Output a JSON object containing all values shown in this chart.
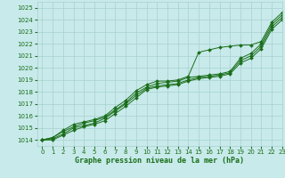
{
  "xlabel": "Graphe pression niveau de la mer (hPa)",
  "xlim": [
    -0.5,
    23
  ],
  "ylim": [
    1013.5,
    1025.5
  ],
  "yticks": [
    1014,
    1015,
    1016,
    1017,
    1018,
    1019,
    1020,
    1021,
    1022,
    1023,
    1024,
    1025
  ],
  "xticks": [
    0,
    1,
    2,
    3,
    4,
    5,
    6,
    7,
    8,
    9,
    10,
    11,
    12,
    13,
    14,
    15,
    16,
    17,
    18,
    19,
    20,
    21,
    22,
    23
  ],
  "bg_color": "#c8eaea",
  "grid_color": "#a8d0d0",
  "line_color": "#1a6e1a",
  "line1_y": [
    1014.0,
    1014.2,
    1014.8,
    1015.3,
    1015.5,
    1015.7,
    1016.0,
    1016.7,
    1017.3,
    1018.1,
    1018.6,
    1018.9,
    1018.9,
    1019.0,
    1019.3,
    1021.3,
    1021.5,
    1021.7,
    1021.8,
    1021.9,
    1021.9,
    1022.2,
    1023.8,
    1024.6
  ],
  "line2_y": [
    1014.0,
    1014.2,
    1014.7,
    1015.1,
    1015.4,
    1015.6,
    1015.9,
    1016.5,
    1017.1,
    1017.9,
    1018.4,
    1018.7,
    1018.8,
    1018.9,
    1019.2,
    1019.3,
    1019.4,
    1019.5,
    1019.7,
    1020.8,
    1021.2,
    1022.0,
    1023.6,
    1024.4
  ],
  "line3_y": [
    1014.0,
    1014.1,
    1014.5,
    1015.0,
    1015.2,
    1015.4,
    1015.8,
    1016.4,
    1017.0,
    1017.7,
    1018.3,
    1018.5,
    1018.6,
    1018.7,
    1019.0,
    1019.2,
    1019.3,
    1019.4,
    1019.6,
    1020.6,
    1021.0,
    1021.8,
    1023.4,
    1024.2
  ],
  "line4_y": [
    1014.0,
    1014.0,
    1014.4,
    1014.8,
    1015.1,
    1015.3,
    1015.6,
    1016.2,
    1016.8,
    1017.5,
    1018.2,
    1018.4,
    1018.5,
    1018.6,
    1018.9,
    1019.1,
    1019.2,
    1019.3,
    1019.5,
    1020.4,
    1020.8,
    1021.6,
    1023.2,
    1024.0
  ],
  "marker": "D",
  "markersize": 2.0,
  "linewidth": 0.7,
  "tick_fontsize": 5.0,
  "label_fontsize": 6.0
}
